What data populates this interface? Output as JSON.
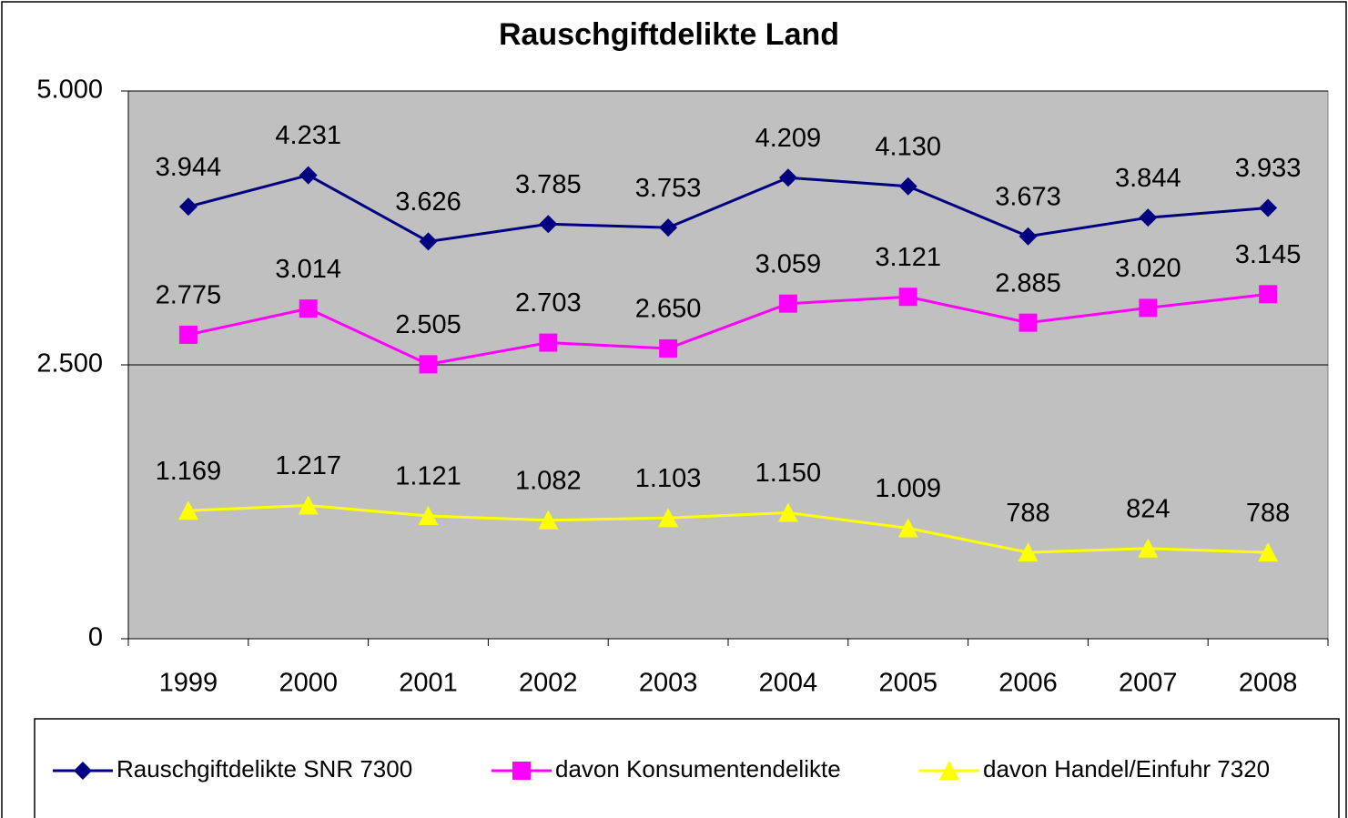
{
  "chart_data": {
    "type": "line",
    "title": "Rauschgiftdelikte Land",
    "categories": [
      "1999",
      "2000",
      "2001",
      "2002",
      "2003",
      "2004",
      "2005",
      "2006",
      "2007",
      "2008"
    ],
    "series": [
      {
        "name": "Rauschgiftdelikte SNR 7300",
        "color": "#000080",
        "marker": "diamond",
        "values": [
          3944,
          4231,
          3626,
          3785,
          3753,
          4209,
          4130,
          3673,
          3844,
          3933
        ],
        "value_labels": [
          "3.944",
          "4.231",
          "3.626",
          "3.785",
          "3.753",
          "4.209",
          "4.130",
          "3.673",
          "3.844",
          "3.933"
        ]
      },
      {
        "name": "davon Konsumentendelikte",
        "color": "#ff00ff",
        "marker": "square",
        "values": [
          2775,
          3014,
          2505,
          2703,
          2650,
          3059,
          3121,
          2885,
          3020,
          3145
        ],
        "value_labels": [
          "2.775",
          "3.014",
          "2.505",
          "2.703",
          "2.650",
          "3.059",
          "3.121",
          "2.885",
          "3.020",
          "3.145"
        ]
      },
      {
        "name": "davon Handel/Einfuhr 7320",
        "color": "#ffff00",
        "marker": "triangle",
        "values": [
          1169,
          1217,
          1121,
          1082,
          1103,
          1150,
          1009,
          788,
          824,
          788
        ],
        "value_labels": [
          "1.169",
          "1.217",
          "1.121",
          "1.082",
          "1.103",
          "1.150",
          "1.009",
          "788",
          "824",
          "788"
        ]
      }
    ],
    "ylim": [
      0,
      5000
    ],
    "yticks": [
      0,
      {
        "value": 2500,
        "label": "2.500"
      },
      {
        "value": 5000,
        "label": "5.000"
      }
    ],
    "grid": true,
    "plot_background": "#c0c0c0",
    "legend": "bottom"
  }
}
